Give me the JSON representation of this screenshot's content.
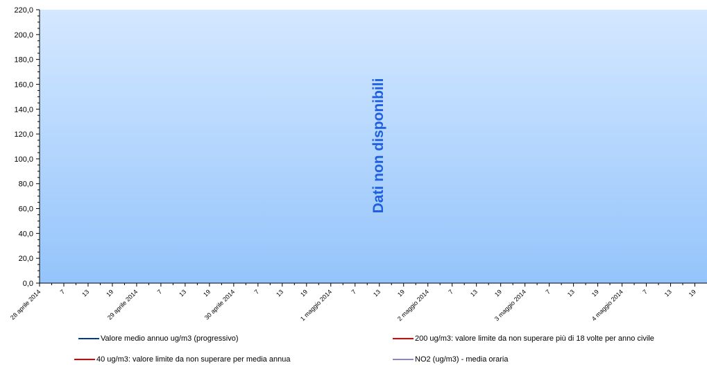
{
  "chart_data": {
    "type": "line",
    "ylim": [
      0,
      220
    ],
    "y_ticks": [
      "0,0",
      "20,0",
      "40,0",
      "60,0",
      "80,0",
      "100,0",
      "120,0",
      "140,0",
      "160,0",
      "180,0",
      "200,0",
      "220,0"
    ],
    "x_tick_labels": [
      "28 aprile 2014",
      "7",
      "13",
      "19",
      "29 aprile 2014",
      "7",
      "13",
      "19",
      "30 aprile 2014",
      "7",
      "13",
      "19",
      "1 maggio 2014",
      "7",
      "13",
      "19",
      "2 maggio 2014",
      "7",
      "13",
      "19",
      "3 maggio 2014",
      "7",
      "13",
      "19",
      "4 maggio 2014",
      "7",
      "13",
      "19"
    ],
    "no_data_message": "Dati non disponibili",
    "background_gradient": [
      "#d4e8ff",
      "#94c4fb"
    ],
    "series": [
      {
        "name": "Valore medio annuo ug/m3 (progressivo)",
        "color": "#003a8c",
        "values": []
      },
      {
        "name": "200 ug/m3: valore limite da non superare più di 18 volte per anno civile",
        "color": "#e00000",
        "values": []
      },
      {
        "name": "40 ug/m3: valore limite da non superare per media annua",
        "color": "#e00000",
        "values": []
      },
      {
        "name": "NO2 (ug/m3)  - media oraria",
        "color": "#8a85c8",
        "values": []
      }
    ],
    "grid": false,
    "legend_position": "bottom"
  }
}
